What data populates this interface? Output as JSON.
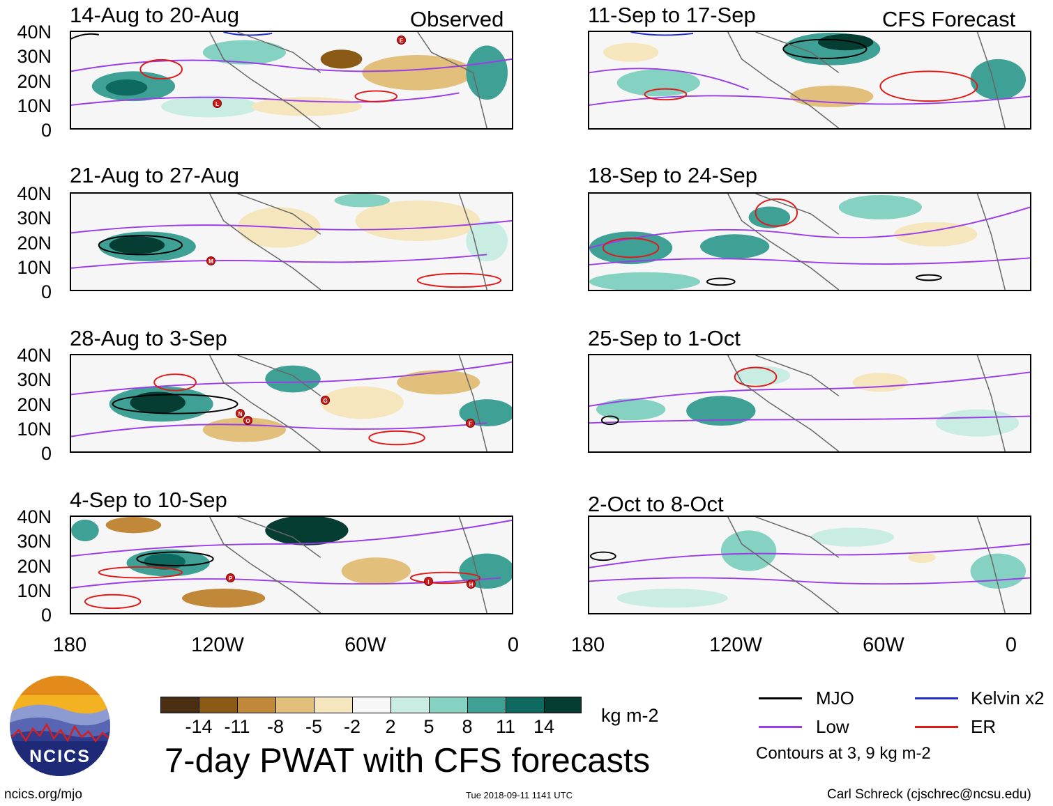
{
  "panels": [
    {
      "title": "14-Aug to 20-Aug",
      "tag": "Observed",
      "storms": [
        "L",
        "E"
      ]
    },
    {
      "title": "21-Aug to 27-Aug",
      "tag": "",
      "storms": [
        "M"
      ]
    },
    {
      "title": "28-Aug to 3-Sep",
      "tag": "",
      "storms": [
        "N",
        "O",
        "G",
        "F"
      ]
    },
    {
      "title": "4-Sep to 10-Sep",
      "tag": "",
      "storms": [
        "P",
        "I",
        "H"
      ]
    },
    {
      "title": "11-Sep to 17-Sep",
      "tag": "CFS Forecast",
      "storms": []
    },
    {
      "title": "18-Sep to 24-Sep",
      "tag": "",
      "storms": []
    },
    {
      "title": "25-Sep to 1-Oct",
      "tag": "",
      "storms": []
    },
    {
      "title": "2-Oct to 8-Oct",
      "tag": "",
      "storms": []
    }
  ],
  "lat_labels": [
    "40N",
    "30N",
    "20N",
    "10N",
    "0"
  ],
  "lon_labels": [
    "180",
    "120W",
    "60W",
    "0"
  ],
  "colorbar": {
    "colors": [
      "#4a2f13",
      "#8c5a17",
      "#c08838",
      "#e2c07c",
      "#f6e6be",
      "#f7f7f7",
      "#c9ece3",
      "#86d2c2",
      "#3fa095",
      "#0e6a60",
      "#063d33"
    ],
    "labels": [
      "-14",
      "-11",
      "-8",
      "-5",
      "-2",
      "2",
      "5",
      "8",
      "11",
      "14"
    ],
    "units": "kg m-2"
  },
  "legend": {
    "items": [
      {
        "label": "MJO",
        "color": "#000000"
      },
      {
        "label": "Kelvin x2",
        "color": "#1f2ad0"
      },
      {
        "label": "Low",
        "color": "#9a3ce8"
      },
      {
        "label": "ER",
        "color": "#e01818"
      }
    ],
    "contours": "Contours at 3, 9 kg m-2"
  },
  "logo": {
    "text": "NCICS"
  },
  "main_title": "7-day PWAT with CFS forecasts",
  "footer": {
    "left": "ncics.org/mjo",
    "center": "Tue 2018-09-11 1141 UTC",
    "right": "Carl Schreck (cjschrec@ncsu.edu)"
  }
}
